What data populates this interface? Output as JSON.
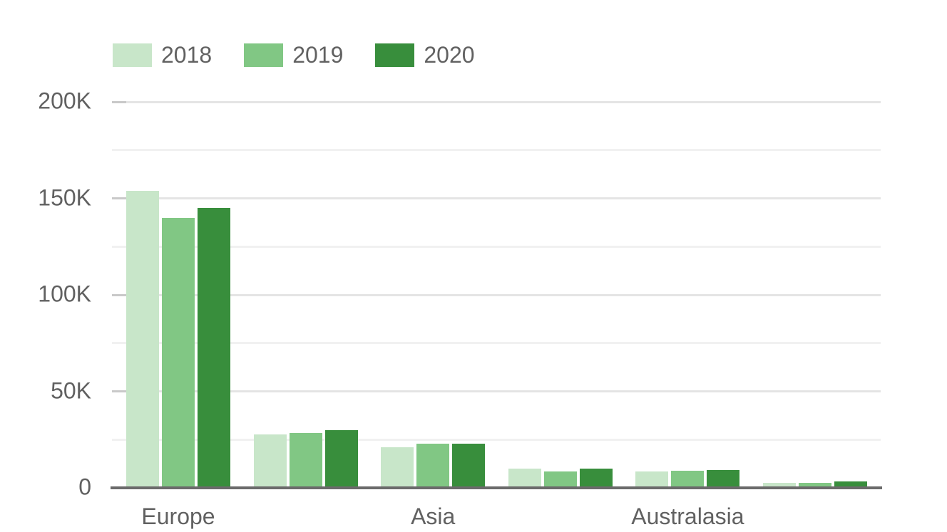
{
  "chart_data": {
    "type": "bar",
    "title": "",
    "xlabel": "",
    "ylabel": "",
    "legend_position": "top",
    "categories": [
      "Europe",
      "",
      "Asia",
      "",
      "Australasia",
      ""
    ],
    "series": [
      {
        "name": "2018",
        "color": "#c8e6c9",
        "values": [
          154000,
          27500,
          21000,
          10000,
          8600,
          2600
        ]
      },
      {
        "name": "2019",
        "color": "#81c784",
        "values": [
          140000,
          28500,
          23000,
          8600,
          9000,
          2600
        ]
      },
      {
        "name": "2020",
        "color": "#388e3c",
        "values": [
          145000,
          30000,
          23000,
          10000,
          9200,
          3400
        ]
      }
    ],
    "ylim": [
      0,
      200000
    ],
    "y_ticks": [
      {
        "value": 0,
        "label": "0"
      },
      {
        "value": 50000,
        "label": "50K"
      },
      {
        "value": 100000,
        "label": "100K"
      },
      {
        "value": 150000,
        "label": "150K"
      },
      {
        "value": 200000,
        "label": "200K"
      }
    ],
    "grid": {
      "visible": true,
      "minor_step": 25000,
      "major_step": 50000,
      "major_color": "#e4e4e4",
      "minor_color": "#f1f1f1"
    },
    "colors": {
      "axis_line": "#6b6b6b",
      "tick": "#c9c9c9",
      "text": "#616161",
      "background": "#ffffff"
    }
  }
}
